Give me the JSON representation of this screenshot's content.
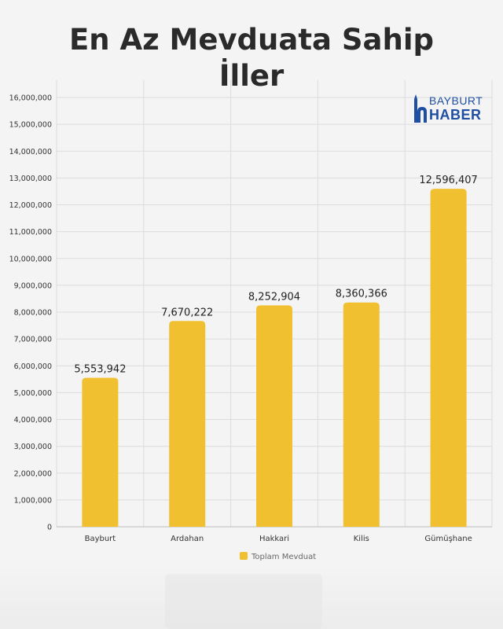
{
  "title_line1": "En Az Mevduata Sahip",
  "title_line2": "İller",
  "logo": {
    "top": "BAYBURT",
    "bottom": "HABER",
    "color": "#1f4fa3",
    "icon": "minaret-h-icon"
  },
  "chart_data": {
    "type": "bar",
    "title": "En Az Mevduata Sahip İller",
    "categories": [
      "Bayburt",
      "Ardahan",
      "Hakkari",
      "Kilis",
      "Gümüşhane"
    ],
    "series": [
      {
        "name": "Toplam Mevduat",
        "values": [
          5553942,
          7670222,
          8252904,
          8360366,
          12596407
        ],
        "color": "#f0c030"
      }
    ],
    "data_labels": [
      "5,553,942",
      "7,670,222",
      "8,252,904",
      "8,360,366",
      "12,596,407"
    ],
    "ylim": [
      0,
      16000000
    ],
    "yticks": [
      "0",
      "1,000,000",
      "2,000,000",
      "3,000,000",
      "4,000,000",
      "5,000,000",
      "6,000,000",
      "7,000,000",
      "8,000,000",
      "9,000,000",
      "10,000,000",
      "11,000,000",
      "12,000,000",
      "13,000,000",
      "14,000,000",
      "15,000,000",
      "16,000,000"
    ],
    "xlabel": "",
    "ylabel": "",
    "grid": true,
    "legend": "bottom"
  }
}
